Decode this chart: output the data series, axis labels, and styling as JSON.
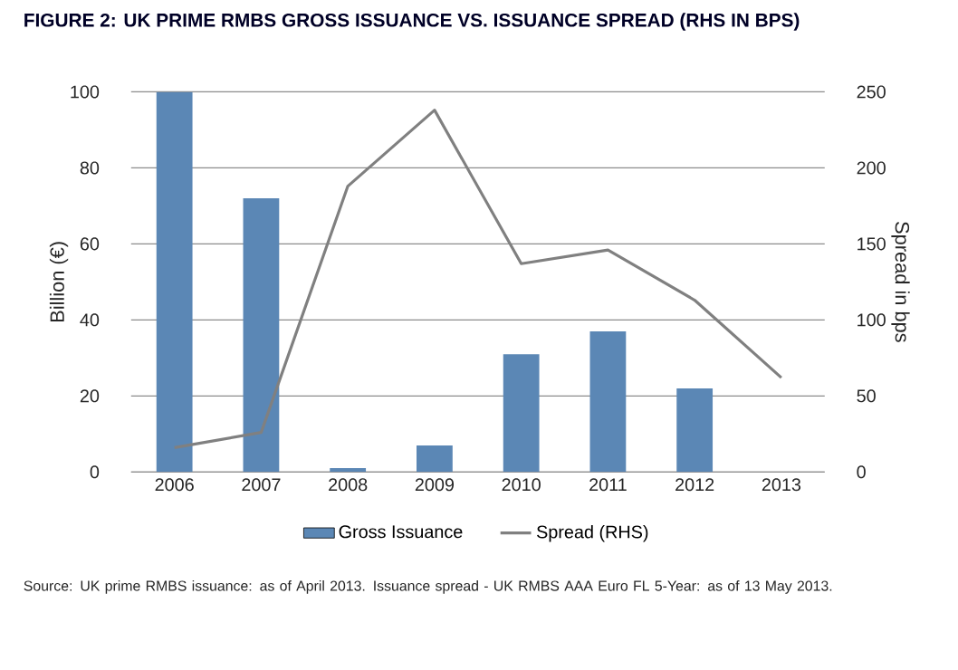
{
  "chart_data": {
    "type": "bar",
    "title": "FIGURE 2: UK PRIME RMBS GROSS ISSUANCE VS. ISSUANCE SPREAD (RHS IN BPS)",
    "ylabel": "Billion (€)",
    "y2label": "Spread in bps",
    "categories": [
      "2006",
      "2007",
      "2008",
      "2009",
      "2010",
      "2011",
      "2012",
      "2013"
    ],
    "series": [
      {
        "name": "Gross Issuance",
        "color": "#5b87b5",
        "values": [
          100,
          72,
          1,
          7,
          31,
          37,
          22,
          null
        ]
      },
      {
        "name": "Spread (RHS)",
        "type": "line",
        "axis": "y2",
        "color": "#808080",
        "values": [
          16,
          26,
          188,
          238,
          137,
          146,
          113,
          62
        ]
      }
    ],
    "ylim": [
      0,
      100
    ],
    "yticks": [
      0,
      20,
      40,
      60,
      80,
      100
    ],
    "y2lim": [
      0,
      250
    ],
    "y2ticks": [
      0,
      50,
      100,
      150,
      200,
      250
    ],
    "grid": "y",
    "legend": "bottom",
    "marker": "none",
    "annotations": [
      "Source: UK prime RMBS issuance: as of April 2013. Issuance spread - UK RMBS AAA Euro FL 5-Year: as of 13 May 2013."
    ]
  }
}
